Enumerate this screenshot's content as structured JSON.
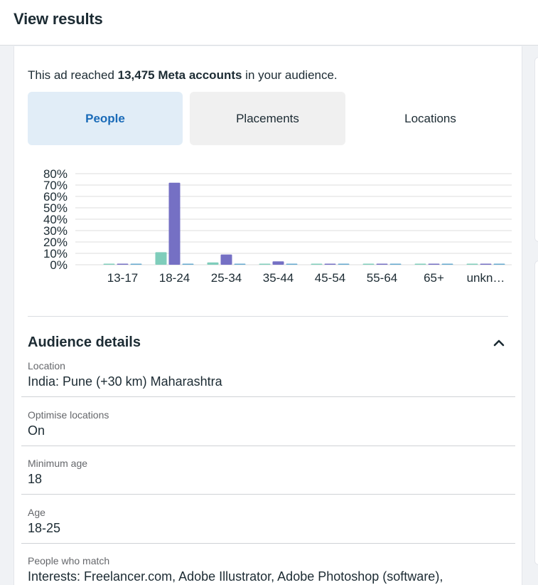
{
  "header": {
    "title": "View results"
  },
  "reach": {
    "prefix": "This ad reached ",
    "count": "13,475 Meta accounts",
    "suffix": " in your audience."
  },
  "tabs": [
    {
      "label": "People",
      "selected": true
    },
    {
      "label": "Placements",
      "selected": false
    },
    {
      "label": "Locations",
      "selected": false
    }
  ],
  "chart_data": {
    "type": "bar",
    "categories": [
      "13-17",
      "18-24",
      "25-34",
      "35-44",
      "45-54",
      "55-64",
      "65+",
      "unkn…"
    ],
    "yticks": [
      "0%",
      "10%",
      "20%",
      "30%",
      "40%",
      "50%",
      "60%",
      "70%",
      "80%"
    ],
    "ylim": [
      0,
      80
    ],
    "grid": true,
    "series": [
      {
        "color": "#7fcdbb",
        "values": [
          0.3,
          11,
          2,
          0.3,
          0.3,
          0.3,
          0.3,
          0.3
        ]
      },
      {
        "color": "#7570c4",
        "values": [
          0.3,
          72,
          9,
          3,
          0.3,
          0.3,
          0.3,
          0.3
        ]
      },
      {
        "color": "#64a9cf",
        "values": [
          0.3,
          0.5,
          0.5,
          0.5,
          0.3,
          0.3,
          0.3,
          0.3
        ]
      }
    ]
  },
  "audience": {
    "heading": "Audience details",
    "details": [
      {
        "label": "Location",
        "value": "India: Pune (+30 km) Maharashtra"
      },
      {
        "label": "Optimise locations",
        "value": "On"
      },
      {
        "label": "Minimum age",
        "value": "18"
      },
      {
        "label": "Age",
        "value": "18-25"
      },
      {
        "label": "People who match",
        "value": "Interests: Freelancer.com, Adobe Illustrator, Adobe Photoshop (software),"
      }
    ]
  }
}
